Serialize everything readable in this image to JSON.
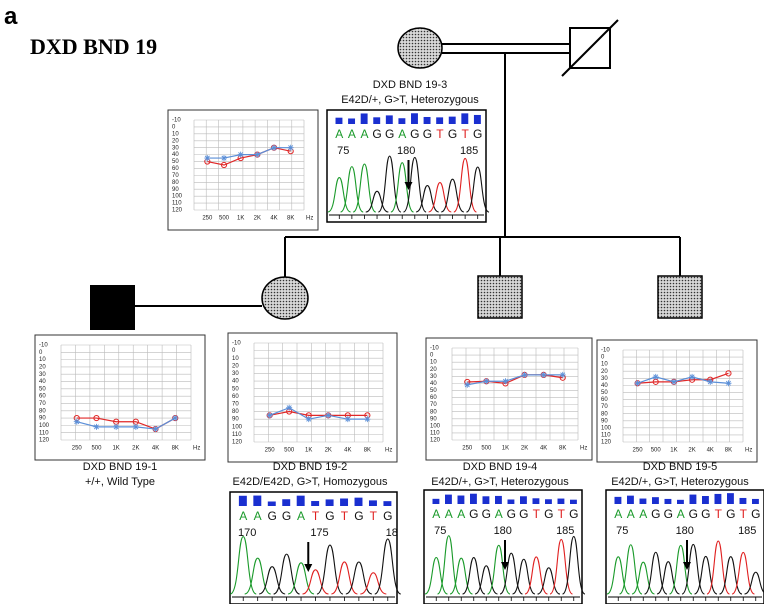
{
  "panel_label": "a",
  "family": "DXD BND 19",
  "audiogram_axis": {
    "ylim": [
      -10,
      120
    ],
    "yticks": [
      -10,
      0,
      10,
      20,
      30,
      40,
      50,
      60,
      70,
      80,
      90,
      100,
      110,
      120
    ],
    "xticks": [
      "250",
      "500",
      "1K",
      "2K",
      "4K",
      "8K"
    ],
    "x_unit": "Hz"
  },
  "members": [
    {
      "label": "DXD BND 19-3",
      "genotype": "E42D/+, G>T, Heterozygous",
      "audiogram": {
        "series": [
          {
            "color": "#e02828",
            "marker": "circle",
            "values": [
              50,
              55,
              45,
              40,
              30,
              35
            ]
          },
          {
            "color": "#5b8fd8",
            "marker": "star",
            "values": [
              45,
              45,
              40,
              40,
              30,
              30
            ]
          }
        ]
      },
      "chromatogram": {
        "sequence": [
          "A",
          "A",
          "A",
          "G",
          "G",
          "A",
          "G",
          "G",
          "T",
          "G",
          "T",
          "G"
        ],
        "positions": [
          75,
          180,
          185
        ]
      }
    },
    {
      "label": "DXD BND 19-1",
      "genotype": "+/+, Wild Type",
      "audiogram": {
        "series": [
          {
            "color": "#e02828",
            "marker": "circle",
            "values": [
              90,
              90,
              95,
              95,
              105,
              90
            ]
          },
          {
            "color": "#5b8fd8",
            "marker": "star",
            "values": [
              95,
              102,
              102,
              102,
              105,
              90
            ]
          }
        ]
      }
    },
    {
      "label": "DXD BND 19-2",
      "genotype": "E42D/E42D, G>T, Homozygous",
      "audiogram": {
        "series": [
          {
            "color": "#e02828",
            "marker": "circle",
            "values": [
              85,
              80,
              85,
              85,
              85,
              85
            ]
          },
          {
            "color": "#5b8fd8",
            "marker": "star",
            "values": [
              85,
              75,
              90,
              85,
              90,
              90
            ]
          }
        ]
      },
      "chromatogram": {
        "sequence": [
          "A",
          "A",
          "G",
          "G",
          "A",
          "T",
          "G",
          "T",
          "G",
          "T",
          "G"
        ],
        "positions": [
          170,
          175,
          18
        ]
      }
    },
    {
      "label": "DXD BND 19-4",
      "genotype": "E42D/+, G>T, Heterozygous",
      "audiogram": {
        "series": [
          {
            "color": "#e02828",
            "marker": "circle",
            "values": [
              38,
              37,
              40,
              28,
              28,
              32
            ]
          },
          {
            "color": "#5b8fd8",
            "marker": "star",
            "values": [
              42,
              37,
              37,
              28,
              28,
              28
            ]
          }
        ]
      },
      "chromatogram": {
        "sequence": [
          "A",
          "A",
          "A",
          "G",
          "G",
          "A",
          "G",
          "G",
          "T",
          "G",
          "T",
          "G"
        ],
        "positions": [
          75,
          180,
          185
        ]
      }
    },
    {
      "label": "DXD BND 19-5",
      "genotype": "E42D/+, G>T, Heterozygous",
      "audiogram": {
        "series": [
          {
            "color": "#e02828",
            "marker": "circle",
            "values": [
              37,
              35,
              35,
              32,
              32,
              23
            ]
          },
          {
            "color": "#5b8fd8",
            "marker": "star",
            "values": [
              37,
              28,
              35,
              28,
              35,
              37
            ]
          }
        ]
      },
      "chromatogram": {
        "sequence": [
          "A",
          "A",
          "A",
          "G",
          "G",
          "A",
          "G",
          "G",
          "T",
          "G",
          "T",
          "G"
        ],
        "positions": [
          75,
          180,
          185
        ]
      }
    }
  ]
}
